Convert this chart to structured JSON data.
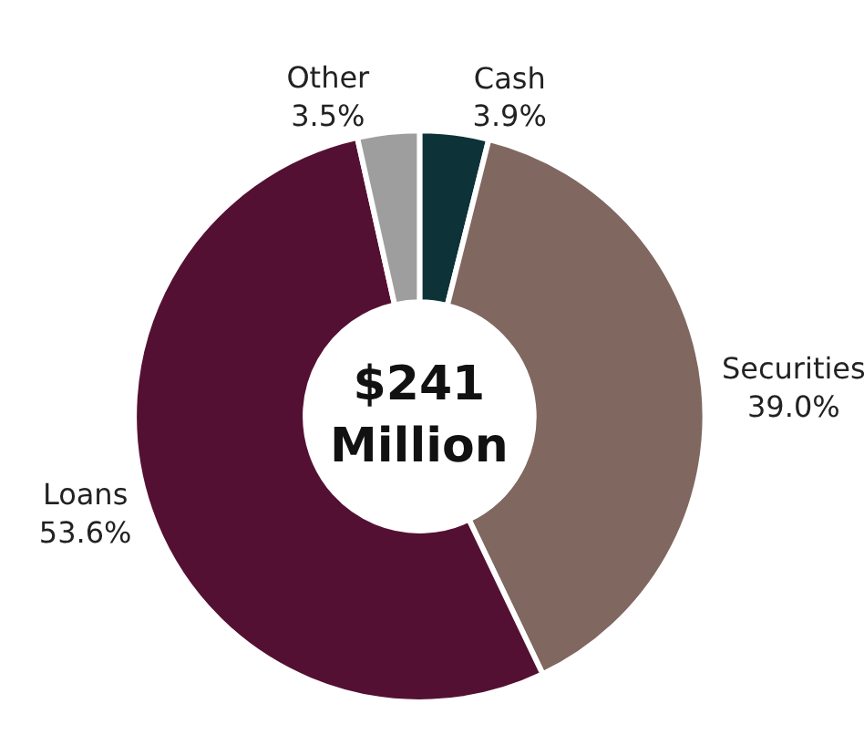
{
  "chart_data": {
    "type": "donut",
    "categories": [
      "Cash",
      "Securities",
      "Loans",
      "Other"
    ],
    "values": [
      3.9,
      39.0,
      53.6,
      3.5
    ],
    "value_labels": [
      "3.9%",
      "39.0%",
      "53.6%",
      "3.5%"
    ],
    "colors": [
      "#0d3338",
      "#806760",
      "#541032",
      "#9e9e9e"
    ],
    "annotations": [
      "$241\nMillion"
    ],
    "legend": false
  }
}
